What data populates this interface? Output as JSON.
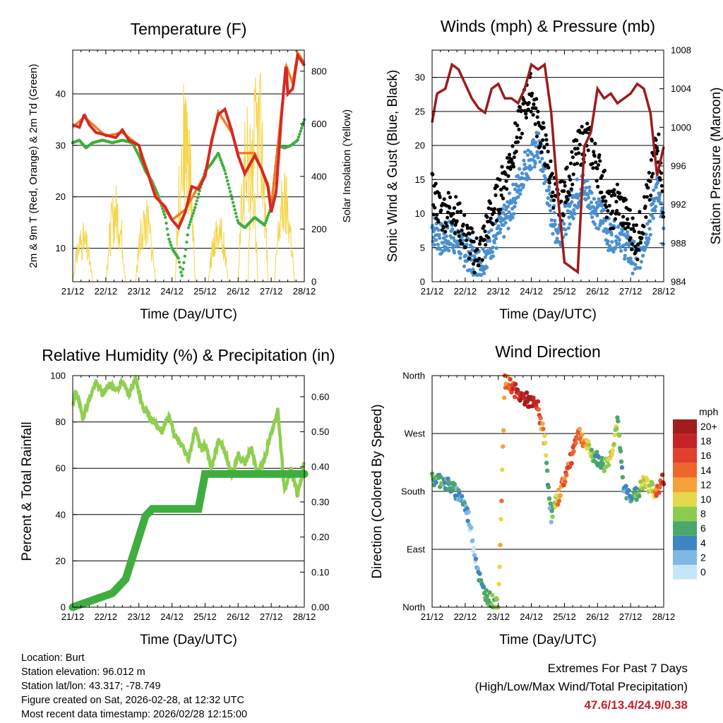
{
  "chart_data": [
    {
      "type": "line",
      "title": "Temperature (F)",
      "xlabel": "Time (Day/UTC)",
      "ylabel": "2m & 9m T (Red, Orange) & 2m Td (Green)",
      "y2label": "Solar Insolation (Yellow)",
      "x_ticks": [
        "21/12",
        "22/12",
        "23/12",
        "24/12",
        "25/12",
        "26/12",
        "27/12",
        "28/12"
      ],
      "x_range": [
        0,
        7
      ],
      "ylim": [
        3.5,
        48.5
      ],
      "y_ticks": [
        10,
        20,
        30,
        40
      ],
      "y2lim": [
        0,
        880
      ],
      "y2_ticks": [
        0,
        200,
        400,
        600,
        800
      ],
      "series": [
        {
          "name": "2m T",
          "color": "#d42a22",
          "x": [
            0,
            0.2,
            0.35,
            0.5,
            0.7,
            1,
            1.3,
            1.5,
            1.7,
            2,
            2.1,
            2.3,
            2.5,
            2.8,
            3,
            3.2,
            3.4,
            3.6,
            3.8,
            4,
            4.2,
            4.4,
            4.6,
            4.8,
            5,
            5.2,
            5.5,
            5.7,
            5.9,
            6,
            6.15,
            6.3,
            6.45,
            6.5,
            6.65,
            6.8,
            7
          ],
          "values": [
            34,
            33.5,
            36,
            34,
            32.5,
            32,
            31.5,
            33,
            31,
            30,
            27.5,
            24,
            20,
            18,
            15.5,
            14,
            17,
            22,
            21.5,
            24,
            31,
            36,
            37,
            33,
            28,
            24.5,
            28,
            25.5,
            22,
            17,
            21,
            35,
            46,
            40,
            41,
            47.5,
            45.5
          ]
        },
        {
          "name": "9m T",
          "color": "#ee7f22",
          "x": [
            0,
            0.35,
            1,
            1.5,
            2,
            2.5,
            3,
            3.4,
            3.8,
            4,
            4.4,
            4.8,
            5,
            5.5,
            5.9,
            6,
            6.3,
            6.45,
            6.65,
            6.8,
            7
          ],
          "values": [
            33.5,
            35.5,
            31.8,
            32.5,
            30,
            20.5,
            15.5,
            17.5,
            22,
            24.5,
            36.5,
            32.5,
            28.5,
            28.5,
            22.5,
            18,
            36,
            45.5,
            42,
            48,
            46
          ]
        },
        {
          "name": "2m Td",
          "color": "#3fae3f",
          "x": [
            0,
            0.2,
            0.4,
            0.6,
            0.9,
            1.2,
            1.5,
            1.8,
            2,
            2.2,
            2.4,
            2.6,
            2.8,
            2.9,
            3,
            3.2,
            3.3,
            3.4,
            3.5,
            3.7,
            4,
            4.2,
            4.4,
            4.6,
            4.8,
            5,
            5.2,
            5.5,
            5.8,
            6,
            6.2,
            6.4,
            6.6,
            6.8,
            7
          ],
          "values": [
            30.5,
            31,
            29.5,
            30.5,
            31,
            30.5,
            31,
            30.5,
            28,
            25,
            23,
            20,
            16,
            12,
            10,
            8,
            4.5,
            9,
            14,
            18,
            25,
            26.5,
            28.5,
            25,
            20,
            15,
            14,
            16,
            14.5,
            18,
            30,
            29.5,
            30,
            31,
            35
          ]
        },
        {
          "name": "Solar Insolation",
          "axis": "y2",
          "color": "#f5d448",
          "peaks": [
            [
              0.3,
              230
            ],
            [
              1.3,
              380
            ],
            [
              2.2,
              320
            ],
            [
              3.4,
              780
            ],
            [
              4.4,
              280
            ],
            [
              5.3,
              680
            ],
            [
              5.6,
              865
            ],
            [
              6.4,
              430
            ]
          ]
        }
      ]
    },
    {
      "type": "scatter",
      "title": "Winds (mph) & Pressure (mb)",
      "xlabel": "Time (Day/UTC)",
      "ylabel": "Sonic Wind & Gust (Blue, Black)",
      "y2label": "Station Pressure (Maroon)",
      "x_ticks": [
        "21/12",
        "22/12",
        "23/12",
        "24/12",
        "25/12",
        "26/12",
        "27/12",
        "28/12"
      ],
      "x_range": [
        0,
        7
      ],
      "ylim": [
        0,
        34
      ],
      "y_ticks": [
        0,
        5,
        10,
        15,
        20,
        25,
        30
      ],
      "y2lim": [
        984,
        1008
      ],
      "y2_ticks": [
        984,
        988,
        992,
        996,
        1000,
        1004,
        1008
      ],
      "series": [
        {
          "name": "Sonic Wind",
          "color": "#4a90d0",
          "x": [
            0,
            0.3,
            0.6,
            0.9,
            1.1,
            1.3,
            1.5,
            1.7,
            1.9,
            2.1,
            2.3,
            2.6,
            2.8,
            3,
            3.2,
            3.4,
            3.6,
            3.8,
            4,
            4.3,
            4.5,
            4.7,
            5,
            5.2,
            5.4,
            5.6,
            5.8,
            6,
            6.2,
            6.4,
            6.6,
            6.8,
            7
          ],
          "values": [
            8,
            6,
            7,
            5,
            4,
            2.5,
            3,
            5,
            6.5,
            8,
            10,
            14,
            17,
            18,
            20,
            16,
            10,
            7,
            9,
            12,
            14,
            13,
            10,
            9,
            6,
            8,
            6,
            4,
            3,
            6,
            9,
            14,
            7
          ]
        },
        {
          "name": "Gust",
          "color": "#000000",
          "x": [
            0,
            0.3,
            0.6,
            0.9,
            1.1,
            1.3,
            1.5,
            1.7,
            1.9,
            2.1,
            2.3,
            2.6,
            2.8,
            3,
            3.2,
            3.4,
            3.6,
            3.8,
            4,
            4.3,
            4.5,
            4.7,
            5,
            5.2,
            5.4,
            5.6,
            5.8,
            6,
            6.2,
            6.4,
            6.6,
            6.8,
            7
          ],
          "values": [
            13,
            10,
            11,
            8,
            6,
            4,
            5,
            9,
            11,
            14,
            17,
            22,
            26,
            28,
            23,
            20,
            15,
            11,
            13,
            18,
            20,
            21,
            17,
            14,
            10,
            12,
            10,
            8,
            6,
            10,
            14,
            22,
            11
          ]
        },
        {
          "name": "Station Pressure",
          "axis": "y2",
          "color": "#9c1c1c",
          "x": [
            0,
            0.15,
            0.4,
            0.6,
            0.8,
            1,
            1.2,
            1.4,
            1.6,
            1.8,
            2,
            2.2,
            2.4,
            2.6,
            2.8,
            3,
            3.2,
            3.4,
            3.6,
            3.8,
            4,
            4.2,
            4.4,
            4.6,
            4.8,
            5,
            5.2,
            5.4,
            5.6,
            5.8,
            6,
            6.2,
            6.4,
            6.6,
            6.8,
            7
          ],
          "values": [
            1000.5,
            1003.5,
            1004,
            1006.5,
            1006,
            1004.5,
            1003,
            1002,
            1001.5,
            1004,
            1004.5,
            1003,
            1003,
            1002.5,
            1004,
            1006.5,
            1006,
            1006.5,
            1001.5,
            993,
            986,
            985.5,
            985,
            998,
            999.5,
            1004,
            1003,
            1003.5,
            1002.5,
            1003,
            1003.5,
            1004.5,
            1004,
            1001.5,
            995,
            998
          ]
        }
      ]
    },
    {
      "type": "line",
      "title": "Relative Humidity (%) & Precipitation (in)",
      "xlabel": "Time (Day/UTC)",
      "ylabel": "Percent & Total Rainfall",
      "x_ticks": [
        "21/12",
        "22/12",
        "23/12",
        "24/12",
        "25/12",
        "26/12",
        "27/12",
        "28/12"
      ],
      "x_range": [
        0,
        7
      ],
      "ylim": [
        0,
        100
      ],
      "y_ticks": [
        0,
        20,
        40,
        60,
        80,
        100
      ],
      "y2lim": [
        0,
        0.66
      ],
      "y2_ticks": [
        "0.00",
        "0.10",
        "0.20",
        "0.30",
        "0.40",
        "0.50",
        "0.60"
      ],
      "series": [
        {
          "name": "Relative Humidity",
          "color": "#8fcf4f",
          "x": [
            0,
            0.1,
            0.3,
            0.5,
            0.7,
            0.9,
            1.1,
            1.3,
            1.5,
            1.7,
            1.9,
            2.1,
            2.3,
            2.5,
            2.7,
            2.9,
            3.1,
            3.3,
            3.5,
            3.7,
            3.9,
            4,
            4.2,
            4.4,
            4.6,
            4.8,
            5,
            5.2,
            5.4,
            5.6,
            5.8,
            6,
            6.2,
            6.4,
            6.6,
            6.8,
            7
          ],
          "values": [
            86,
            94,
            82,
            90,
            97,
            92,
            96,
            94,
            97,
            92,
            99,
            87,
            83,
            79,
            76,
            83,
            73,
            70,
            64,
            77,
            68,
            70,
            60,
            72,
            68,
            56,
            66,
            62,
            68,
            58,
            64,
            75,
            85,
            50,
            60,
            48,
            62
          ]
        },
        {
          "name": "Total Precipitation",
          "axis": "y2",
          "color": "#3fae3f",
          "x": [
            0,
            0.3,
            0.6,
            0.9,
            1.2,
            1.4,
            1.6,
            1.8,
            2,
            2.2,
            2.4,
            3,
            3.4,
            3.6,
            3.8,
            4,
            4.5,
            5,
            6,
            7
          ],
          "values": [
            0,
            0.01,
            0.02,
            0.03,
            0.04,
            0.06,
            0.08,
            0.14,
            0.2,
            0.26,
            0.28,
            0.28,
            0.28,
            0.28,
            0.28,
            0.38,
            0.38,
            0.38,
            0.38,
            0.38
          ]
        }
      ]
    },
    {
      "type": "scatter",
      "title": "Wind Direction",
      "xlabel": "Time (Day/UTC)",
      "ylabel": "Direction (Colored By Speed)",
      "x_ticks": [
        "21/12",
        "22/12",
        "23/12",
        "24/12",
        "25/12",
        "26/12",
        "27/12",
        "28/12"
      ],
      "x_range": [
        0,
        7
      ],
      "y_ticks": [
        "North",
        "East",
        "South",
        "West",
        "North"
      ],
      "ylim": [
        0,
        360
      ],
      "colorbar": {
        "unit": "mph",
        "labels": [
          "20+",
          "18",
          "16",
          "14",
          "12",
          "10",
          "8",
          "6",
          "4",
          "2",
          "0"
        ],
        "colors": [
          "#a11d1d",
          "#c42428",
          "#e0402c",
          "#f0642d",
          "#f5a23a",
          "#e5d84a",
          "#8ccb50",
          "#4aa86a",
          "#3f85c2",
          "#80b8e4",
          "#c6e6f7"
        ]
      },
      "series": [
        {
          "name": "Direction",
          "x": [
            0,
            0.3,
            0.6,
            0.9,
            1.1,
            1.3,
            1.5,
            1.7,
            1.9,
            2,
            2.2,
            2.4,
            2.6,
            2.8,
            3,
            3.2,
            3.4,
            3.5,
            3.6,
            3.8,
            4,
            4.2,
            4.4,
            4.6,
            4.8,
            5,
            5.2,
            5.4,
            5.6,
            5.8,
            6,
            6.2,
            6.4,
            6.6,
            6.8,
            7
          ],
          "values": [
            198,
            198,
            185,
            170,
            140,
            80,
            30,
            15,
            5,
            0,
            350,
            345,
            330,
            325,
            318,
            310,
            260,
            200,
            140,
            170,
            200,
            230,
            275,
            258,
            240,
            230,
            220,
            235,
            290,
            180,
            175,
            175,
            195,
            185,
            180,
            200
          ],
          "speeds": [
            5,
            6,
            5,
            4,
            2,
            1,
            5,
            6,
            8,
            9,
            14,
            16,
            18,
            20,
            20,
            16,
            10,
            6,
            4,
            12,
            14,
            15,
            14,
            12,
            8,
            5,
            6,
            10,
            8,
            4,
            4,
            6,
            10,
            8,
            14,
            16
          ]
        }
      ]
    }
  ],
  "info": {
    "location": "Location: Burt",
    "elevation": "Station elevation: 96.012 m",
    "latlon": "Station lat/lon: 43.317; -78.749",
    "created": "Figure created on Sat, 2026-02-28, at 12:32 UTC",
    "recent": "Most recent data timestamp: 2026/02/28 12:15:00"
  },
  "extremes": {
    "title": "Extremes For Past 7 Days",
    "subtitle": "(High/Low/Max Wind/Total Precipitation)",
    "values": "47.6/13.4/24.9/0.38"
  }
}
